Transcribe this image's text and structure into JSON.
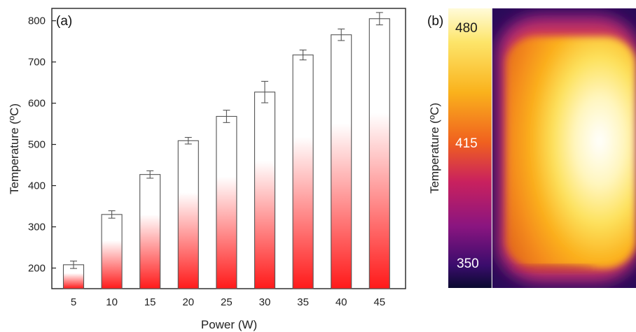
{
  "panel_a_label": "(a)",
  "panel_b_label": "(b)",
  "chart_data": {
    "type": "bar",
    "categories": [
      "5",
      "10",
      "15",
      "20",
      "25",
      "30",
      "35",
      "40",
      "45"
    ],
    "values": [
      208,
      330,
      427,
      509,
      568,
      627,
      717,
      766,
      805
    ],
    "errors": [
      9,
      9,
      9,
      8,
      15,
      26,
      12,
      14,
      15
    ],
    "xlabel": "Power (W)",
    "ylabel": "Temperature (ºC)",
    "ylim": [
      150,
      830
    ],
    "yticks": [
      200,
      300,
      400,
      500,
      600,
      700,
      800
    ],
    "grid": false,
    "bar_fill": "gradient white (top) to red (bottom)",
    "colors": {
      "bar_top": "#ffffff",
      "bar_bottom": "#ff1a1a",
      "bar_edge": "#555555",
      "error_bar": "#555555"
    }
  },
  "thermal_image": {
    "colorbar_title": "Temperature (ºC)",
    "colorbar_labels": [
      "480",
      "415",
      "350"
    ]
  }
}
